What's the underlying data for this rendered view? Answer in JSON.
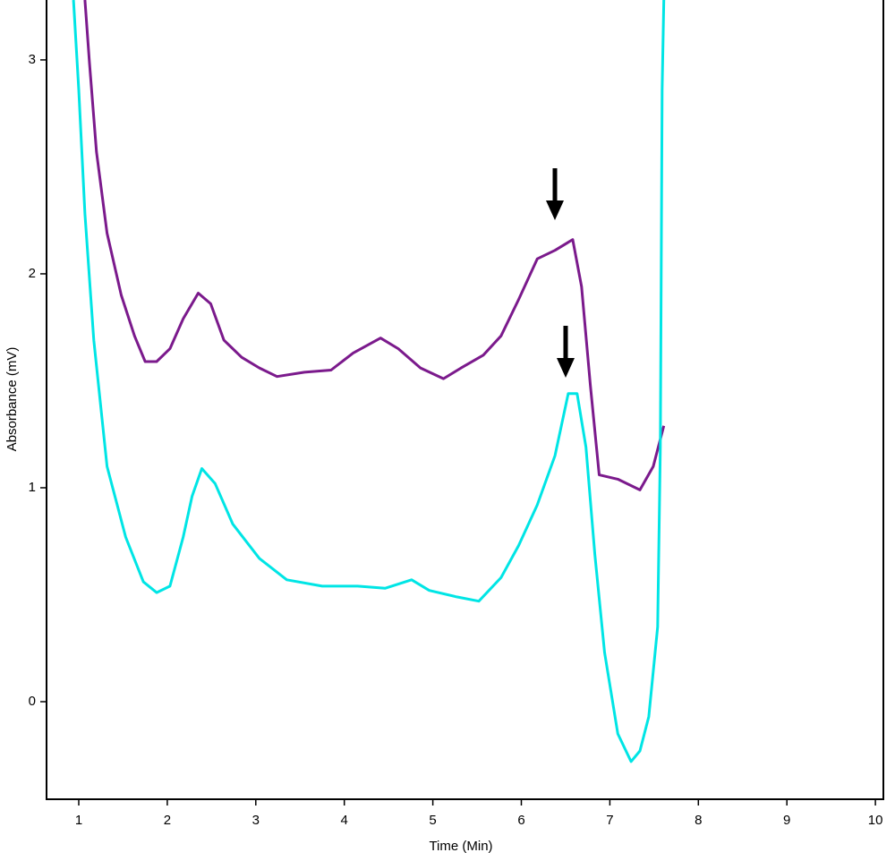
{
  "chart_data": {
    "type": "line",
    "x_label": "Time (Min)",
    "y_label": "Absorbance (mV)",
    "xlim": [
      0.636,
      10.09
    ],
    "ylim": [
      -0.456,
      3.28
    ],
    "xticks": [
      1,
      2,
      3,
      4,
      5,
      6,
      7,
      8,
      9,
      10
    ],
    "yticks": [
      0,
      1,
      2,
      3
    ],
    "series": [
      {
        "name": null,
        "color": "#7b1a8c",
        "x": [
          1.07,
          1.12,
          1.2,
          1.32,
          1.48,
          1.63,
          1.75,
          1.88,
          2.03,
          2.18,
          2.35,
          2.49,
          2.64,
          2.84,
          3.04,
          3.24,
          3.55,
          3.85,
          4.1,
          4.41,
          4.61,
          4.86,
          5.12,
          5.32,
          5.57,
          5.77,
          5.97,
          6.18,
          6.38,
          6.58,
          6.68,
          6.78,
          6.88,
          7.09,
          7.34,
          7.49,
          7.61
        ],
        "values": [
          3.28,
          2.99,
          2.57,
          2.19,
          1.9,
          1.71,
          1.59,
          1.59,
          1.65,
          1.79,
          1.91,
          1.86,
          1.69,
          1.61,
          1.56,
          1.52,
          1.54,
          1.55,
          1.63,
          1.7,
          1.65,
          1.56,
          1.51,
          1.56,
          1.62,
          1.71,
          1.88,
          2.07,
          2.11,
          2.16,
          1.94,
          1.48,
          1.06,
          1.04,
          0.99,
          1.1,
          1.29
        ]
      },
      {
        "name": null,
        "color": "#00e5e5",
        "x": [
          0.94,
          1.0,
          1.07,
          1.17,
          1.32,
          1.53,
          1.73,
          1.88,
          2.03,
          2.18,
          2.28,
          2.39,
          2.54,
          2.74,
          3.04,
          3.35,
          3.75,
          4.15,
          4.46,
          4.76,
          4.96,
          5.27,
          5.52,
          5.77,
          5.97,
          6.18,
          6.38,
          6.53,
          6.63,
          6.73,
          6.83,
          6.94,
          7.09,
          7.24,
          7.34,
          7.44,
          7.54,
          7.57,
          7.59,
          7.61
        ],
        "values": [
          3.28,
          2.86,
          2.28,
          1.69,
          1.1,
          0.77,
          0.56,
          0.51,
          0.54,
          0.77,
          0.96,
          1.09,
          1.02,
          0.83,
          0.67,
          0.57,
          0.54,
          0.54,
          0.53,
          0.57,
          0.52,
          0.49,
          0.47,
          0.58,
          0.73,
          0.92,
          1.15,
          1.44,
          1.44,
          1.19,
          0.69,
          0.23,
          -0.15,
          -0.28,
          -0.23,
          -0.07,
          0.35,
          1.19,
          2.86,
          3.28
        ]
      }
    ]
  }
}
